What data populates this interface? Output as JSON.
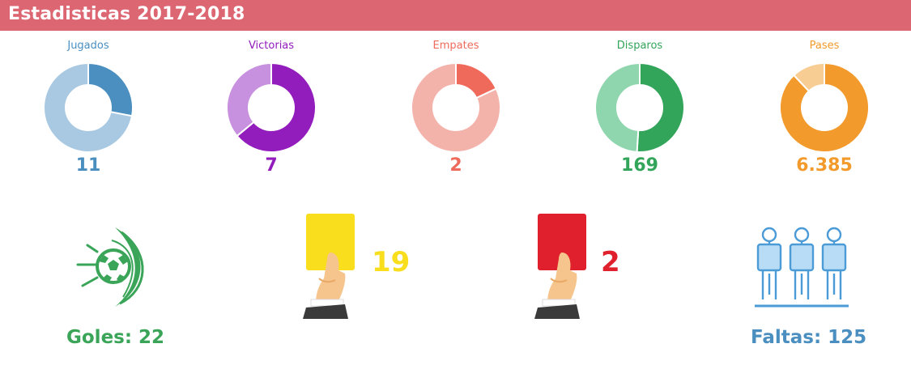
{
  "header": {
    "title": "Estadisticas 2017-2018",
    "color": "#dd6673"
  },
  "chart_data": [
    {
      "type": "pie",
      "title": "Jugados",
      "value_label": "11",
      "slices": [
        0.28,
        0.72
      ],
      "colors": [
        "#4a8fc0",
        "#a9c9e2"
      ],
      "text_color": "#4a8fc0"
    },
    {
      "type": "pie",
      "title": "Victorias",
      "value_label": "7",
      "slices": [
        0.64,
        0.36
      ],
      "colors": [
        "#921cbc",
        "#c891df"
      ],
      "text_color": "#921cbc"
    },
    {
      "type": "pie",
      "title": "Empates",
      "value_label": "2",
      "slices": [
        0.18,
        0.82
      ],
      "colors": [
        "#ef6a5a",
        "#f4b3aa"
      ],
      "text_color": "#ee6a5c"
    },
    {
      "type": "pie",
      "title": "Disparos",
      "value_label": "169",
      "slices": [
        0.51,
        0.49
      ],
      "colors": [
        "#33a55a",
        "#8fd6ae"
      ],
      "text_color": "#33a55a"
    },
    {
      "type": "pie",
      "title": "Pases",
      "value_label": "6.385",
      "slices": [
        0.88,
        0.12
      ],
      "colors": [
        "#f29a2b",
        "#f8cd93"
      ],
      "text_color": "#f29a2b"
    }
  ],
  "stats": {
    "goles": {
      "label": "Goles: 22",
      "icon": "soccer-ball-goal-icon",
      "color": "#3aa558"
    },
    "yellow_cards": {
      "value": "19",
      "icon": "yellow-card-icon",
      "color": "#f8de1c"
    },
    "red_cards": {
      "value": "2",
      "icon": "red-card-icon",
      "color": "#e0202c"
    },
    "faltas": {
      "label": "Faltas: 125",
      "icon": "defensive-wall-icon",
      "color": "#4a8fc0"
    }
  }
}
